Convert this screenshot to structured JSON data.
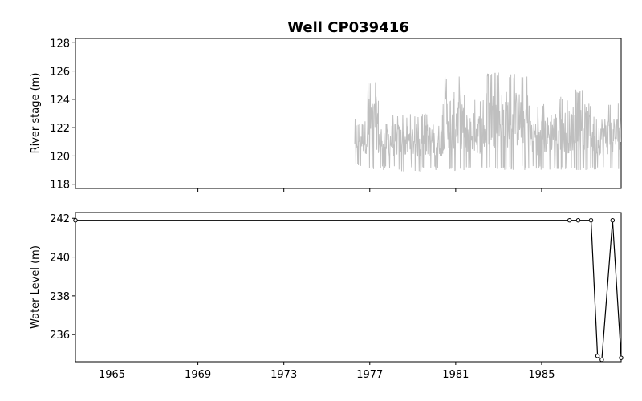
{
  "title": "Well CP039416",
  "chart_data": [
    {
      "type": "line",
      "ylabel": "River stage (m)",
      "xlabel": "",
      "xlim": [
        1963.3,
        1988.7
      ],
      "ylim": [
        117.7,
        128.3
      ],
      "yticks": [
        118,
        120,
        122,
        124,
        126,
        128
      ],
      "xticks": [
        1965,
        1969,
        1973,
        1977,
        1981,
        1985
      ],
      "show_x_tick_labels": false,
      "grid": false,
      "color": "#bfbfbf",
      "series": [
        {
          "x_range": [
            1976.3,
            1988.7
          ],
          "approx_min_max_by_segment": [
            {
              "x": [
                1976.3,
                1976.9
              ],
              "min": 119.2,
              "max": 123.3
            },
            {
              "x": [
                1976.9,
                1977.4
              ],
              "min": 119.0,
              "max": 125.3
            },
            {
              "x": [
                1977.4,
                1978.4
              ],
              "min": 119.0,
              "max": 123.0
            },
            {
              "x": [
                1978.4,
                1979.4
              ],
              "min": 118.9,
              "max": 123.0
            },
            {
              "x": [
                1979.4,
                1980.4
              ],
              "min": 119.0,
              "max": 123.0
            },
            {
              "x": [
                1980.4,
                1981.4
              ],
              "min": 118.9,
              "max": 125.7
            },
            {
              "x": [
                1981.4,
                1982.4
              ],
              "min": 119.0,
              "max": 124.0
            },
            {
              "x": [
                1982.4,
                1983.4
              ],
              "min": 119.0,
              "max": 125.9
            },
            {
              "x": [
                1983.4,
                1984.4
              ],
              "min": 119.0,
              "max": 125.8
            },
            {
              "x": [
                1984.4,
                1985.4
              ],
              "min": 119.0,
              "max": 123.7
            },
            {
              "x": [
                1985.4,
                1986.4
              ],
              "min": 119.0,
              "max": 124.2
            },
            {
              "x": [
                1986.4,
                1987.4
              ],
              "min": 119.0,
              "max": 124.7
            },
            {
              "x": [
                1987.4,
                1988.7
              ],
              "min": 119.0,
              "max": 123.7
            }
          ]
        }
      ]
    },
    {
      "type": "line",
      "ylabel": "Water Level (m)",
      "xlabel": "",
      "xlim": [
        1963.3,
        1988.7
      ],
      "ylim": [
        234.6,
        242.3
      ],
      "yticks": [
        236,
        238,
        240,
        242
      ],
      "xticks": [
        1965,
        1969,
        1973,
        1977,
        1981,
        1985
      ],
      "xtick_labels": [
        "1965",
        "1969",
        "1973",
        "1977",
        "1981",
        "1985"
      ],
      "grid": false,
      "color": "#000000",
      "marker": "open-circle",
      "series": [
        {
          "x": [
            1963.3,
            1986.3,
            1986.7,
            1987.3,
            1987.6,
            1987.8,
            1988.3,
            1988.7
          ],
          "y": [
            241.9,
            241.9,
            241.9,
            241.9,
            234.9,
            234.7,
            241.9,
            234.8
          ]
        }
      ]
    }
  ]
}
